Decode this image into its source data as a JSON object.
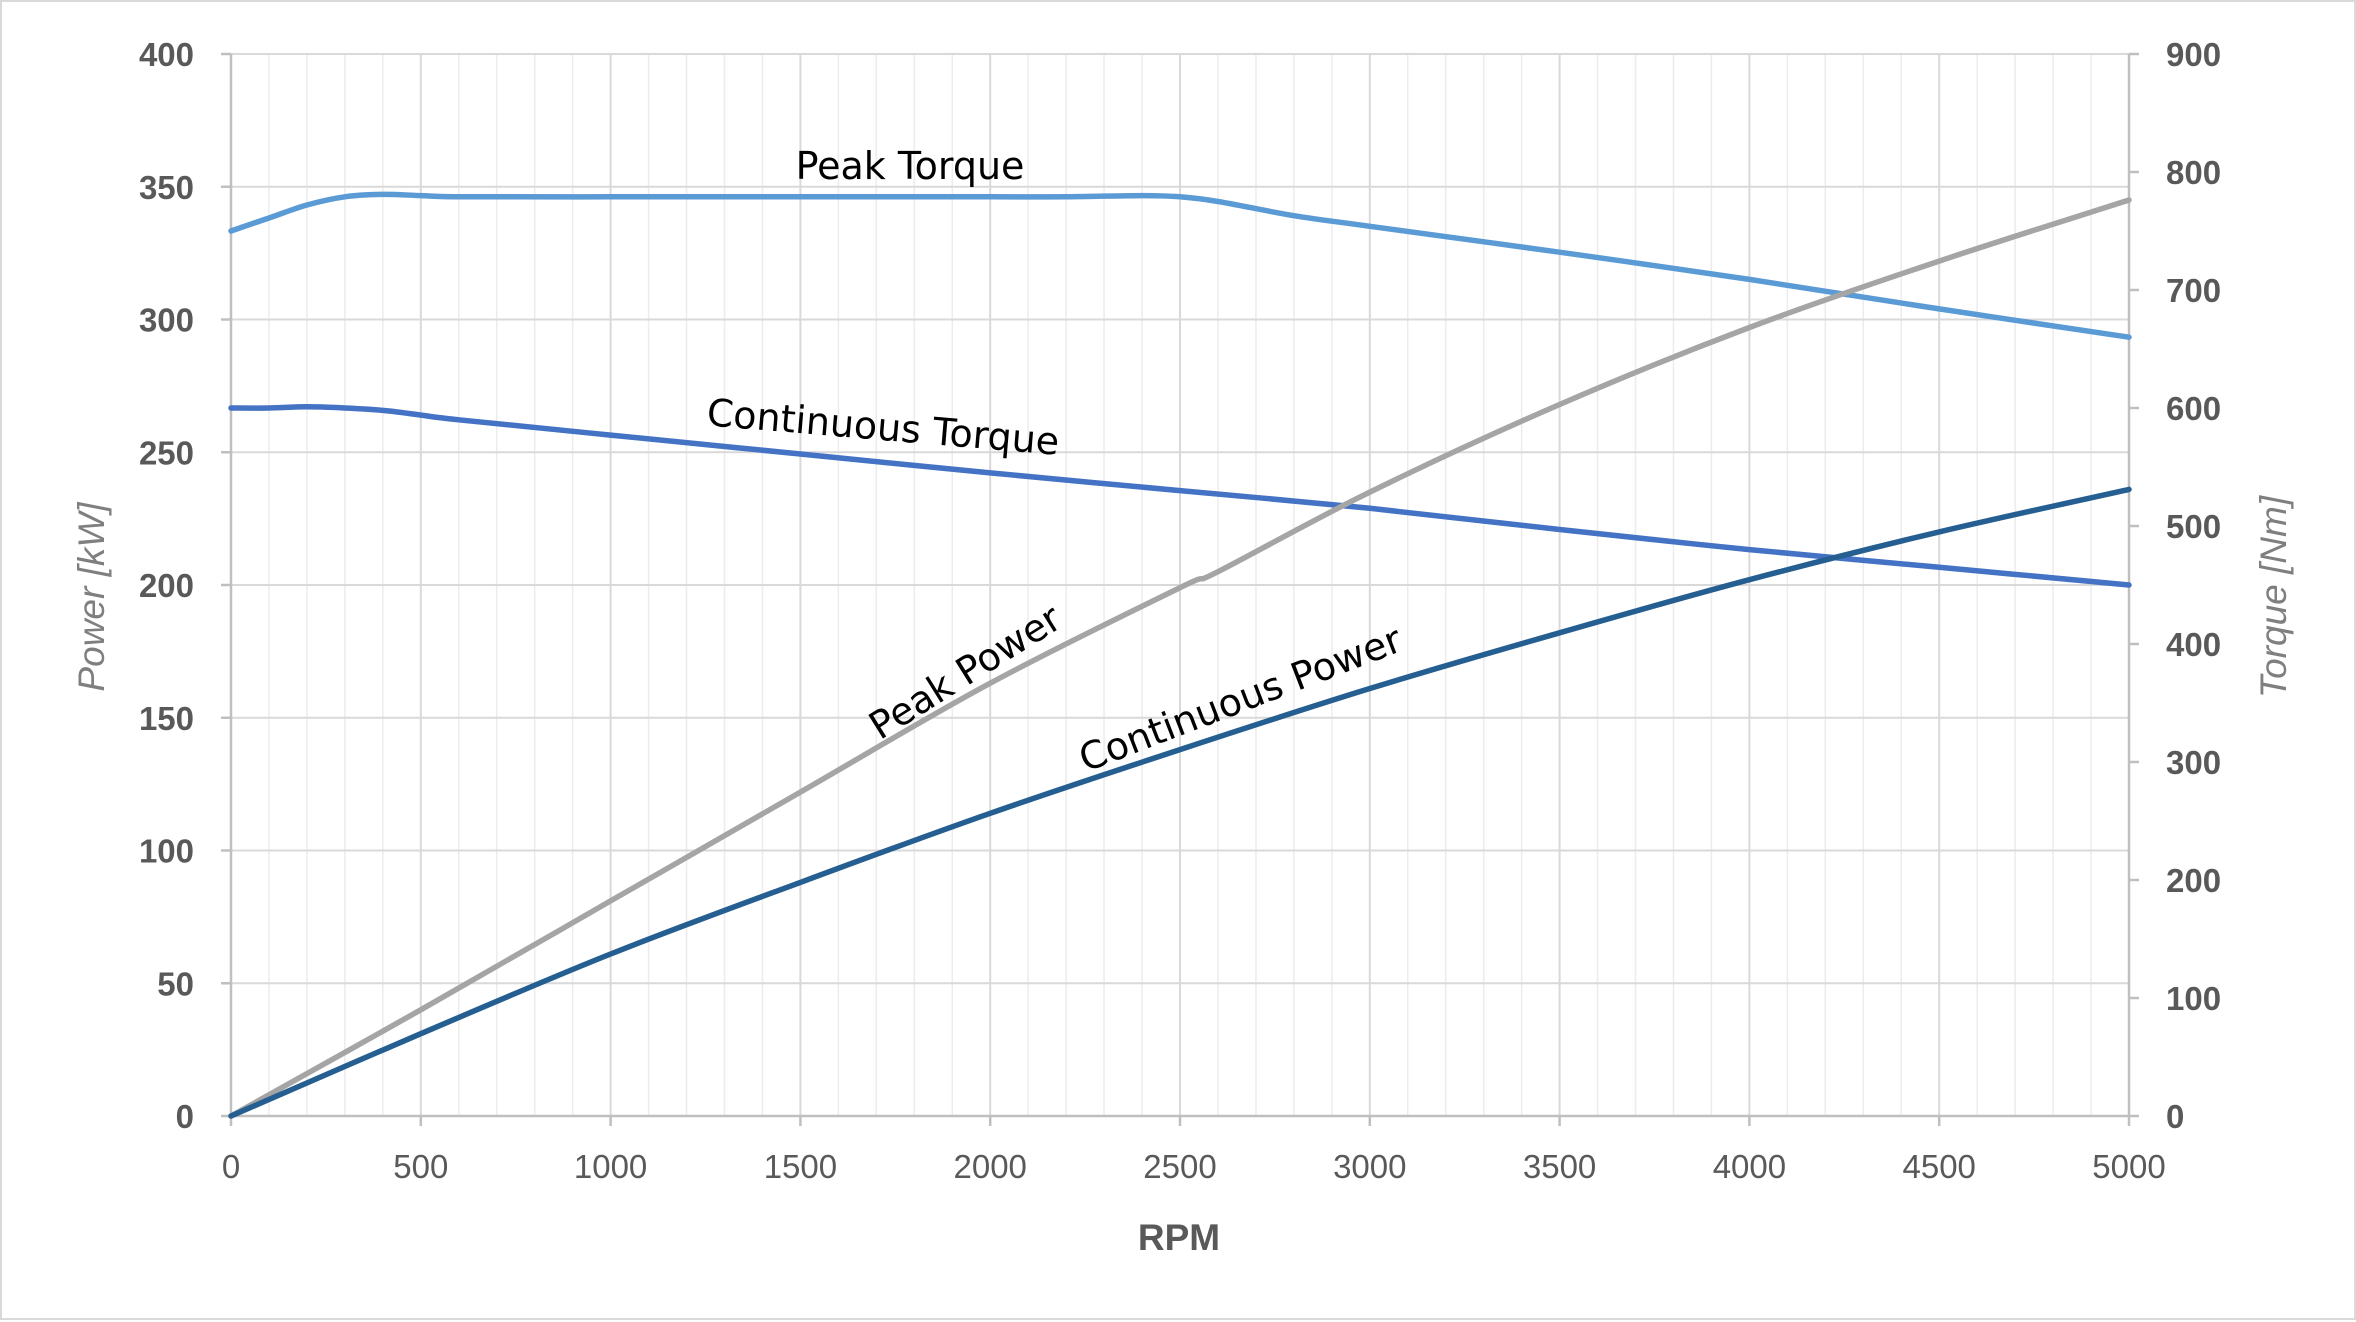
{
  "chart_data": {
    "type": "line",
    "xlabel": "RPM",
    "ylabel_left": "Power [kW]",
    "ylabel_right": "Torque [Nm]",
    "xlim": [
      0,
      5000
    ],
    "ylim_left": [
      0,
      400
    ],
    "ylim_right": [
      0,
      900
    ],
    "x_ticks": [
      0,
      500,
      1000,
      1500,
      2000,
      2500,
      3000,
      3500,
      4000,
      4500,
      5000
    ],
    "y_left_ticks": [
      0,
      50,
      100,
      150,
      200,
      250,
      300,
      350,
      400
    ],
    "y_right_ticks": [
      0,
      100,
      200,
      300,
      400,
      500,
      600,
      700,
      800,
      900
    ],
    "grid": true,
    "minor_x_grid_step": 100,
    "colors": {
      "peak_torque": "#5b9bd5",
      "continuous_torque": "#4472c4",
      "peak_power": "#a5a5a5",
      "continuous_power": "#255e91",
      "grid": "#d9d9d9",
      "minor_grid": "#ececec",
      "axis": "#bfbfbf"
    },
    "series": [
      {
        "key": "peak_torque",
        "name": "Peak Torque",
        "axis": "right",
        "x": [
          0,
          100,
          200,
          300,
          400,
          500,
          600,
          1000,
          1500,
          2000,
          2200,
          2400,
          2500,
          2600,
          2800,
          3000,
          3500,
          4000,
          4500,
          5000
        ],
        "values": [
          750,
          761,
          772,
          779,
          781,
          780,
          779,
          779,
          779,
          779,
          779,
          780,
          779,
          775,
          763,
          754,
          732,
          709,
          684,
          660
        ]
      },
      {
        "key": "continuous_torque",
        "name": "Continuous Torque",
        "axis": "right",
        "x": [
          0,
          100,
          200,
          300,
          400,
          500,
          600,
          1000,
          1500,
          2000,
          2500,
          3000,
          3500,
          4000,
          4500,
          5000
        ],
        "values": [
          600,
          600,
          601,
          600,
          598,
          594,
          590,
          577,
          561,
          545,
          530,
          515,
          497,
          480,
          465,
          450
        ]
      },
      {
        "key": "peak_power",
        "name": "Peak Power",
        "axis": "left",
        "x": [
          0,
          500,
          1000,
          1500,
          2000,
          2500,
          2600,
          3000,
          3500,
          4000,
          4500,
          5000
        ],
        "values": [
          0,
          40,
          81,
          122,
          163,
          199,
          205,
          235,
          268,
          297,
          322,
          345
        ]
      },
      {
        "key": "continuous_power",
        "name": "Continuous Power",
        "axis": "left",
        "x": [
          0,
          500,
          1000,
          1500,
          2000,
          2500,
          3000,
          3500,
          4000,
          4500,
          5000
        ],
        "values": [
          0,
          31,
          61,
          88,
          114,
          138,
          161,
          182,
          202,
          220,
          236
        ]
      }
    ]
  }
}
